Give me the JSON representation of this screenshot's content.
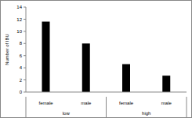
{
  "chart_data": {
    "type": "bar",
    "y_label": "Number of IBU",
    "categories": [
      "female",
      "male",
      "female",
      "male"
    ],
    "category_groups": [
      "low",
      "low",
      "high",
      "high"
    ],
    "values": [
      11.6,
      8,
      4.6,
      2.7
    ],
    "color": "#000000",
    "ylim": [
      0,
      14
    ],
    "yticks": [
      0,
      2,
      4,
      6,
      8,
      10,
      12,
      14
    ],
    "grid": false
  }
}
